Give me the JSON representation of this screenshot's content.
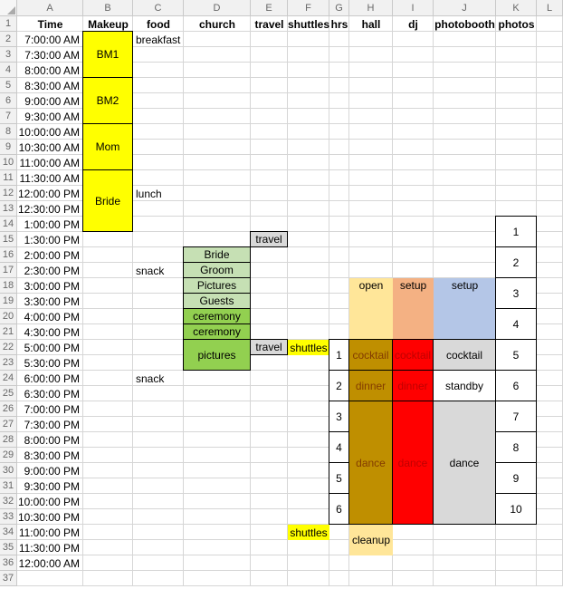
{
  "sheet_header": {
    "column_letters": [
      "A",
      "B",
      "C",
      "D",
      "E",
      "F",
      "G",
      "H",
      "I",
      "J",
      "K",
      "L"
    ],
    "row_count": 37
  },
  "header_row": {
    "A": "Time",
    "B": "Makeup",
    "C": "food",
    "D": "church",
    "E": "travel",
    "F": "shuttles",
    "G": "hrs",
    "H": "hall",
    "I": "dj",
    "J": "photobooth",
    "K": "photos",
    "L": ""
  },
  "times": [
    "7:00:00 AM",
    "7:30:00 AM",
    "8:00:00 AM",
    "8:30:00 AM",
    "9:00:00 AM",
    "9:30:00 AM",
    "10:00:00 AM",
    "10:30:00 AM",
    "11:00:00 AM",
    "11:30:00 AM",
    "12:00:00 PM",
    "12:30:00 PM",
    "1:00:00 PM",
    "1:30:00 PM",
    "2:00:00 PM",
    "2:30:00 PM",
    "3:00:00 PM",
    "3:30:00 PM",
    "4:00:00 PM",
    "4:30:00 PM",
    "5:00:00 PM",
    "5:30:00 PM",
    "6:00:00 PM",
    "6:30:00 PM",
    "7:00:00 PM",
    "7:30:00 PM",
    "8:00:00 PM",
    "8:30:00 PM",
    "9:00:00 PM",
    "9:30:00 PM",
    "10:00:00 PM",
    "10:30:00 PM",
    "11:00:00 PM",
    "11:30:00 PM",
    "12:00:00 AM"
  ],
  "cell_styles": {
    "makeup": {
      "bg": "#FFFF00",
      "border": true
    },
    "food": {
      "align": "left"
    },
    "church_group": {
      "bg": "#C6E0B4",
      "border": true
    },
    "church_event": {
      "bg": "#92D050",
      "border": true
    },
    "travel": {
      "bg": "#D9D9D9",
      "border": true
    },
    "shuttles": {
      "bg": "#FFFF00"
    },
    "hall_open": {
      "bg": "#FFE699",
      "valign": "top"
    },
    "hall_active": {
      "bg": "#BF8F00",
      "fg": "#833C00",
      "border": true
    },
    "hall_cleanup": {
      "bg": "#FFE699"
    },
    "dj_setup": {
      "bg": "#F4B183",
      "valign": "top"
    },
    "dj_active": {
      "bg": "#FF0000",
      "fg": "#C00000",
      "border": true
    },
    "booth_setup": {
      "bg": "#B4C6E7",
      "valign": "top"
    },
    "booth_idle": {
      "bg": "#D9D9D9",
      "border": true
    },
    "white_box": {
      "bg": "#FFFFFF",
      "border": true
    }
  },
  "ui_colors": {
    "gridline": "#D6D6D6",
    "header_bg": "#F1F1F1",
    "header_border": "#C9C9C9",
    "header_text": "#686868",
    "cell_border": "#000000"
  },
  "cells": [
    {
      "col": "B",
      "row": 2,
      "span": 3,
      "text": "BM1",
      "style": "makeup"
    },
    {
      "col": "B",
      "row": 5,
      "span": 3,
      "text": "BM2",
      "style": "makeup"
    },
    {
      "col": "B",
      "row": 8,
      "span": 3,
      "text": "Mom",
      "style": "makeup"
    },
    {
      "col": "B",
      "row": 11,
      "span": 4,
      "text": "Bride",
      "style": "makeup"
    },
    {
      "col": "C",
      "row": 2,
      "span": 1,
      "text": "breakfast",
      "style": "food"
    },
    {
      "col": "C",
      "row": 12,
      "span": 1,
      "text": "lunch",
      "style": "food"
    },
    {
      "col": "C",
      "row": 17,
      "span": 1,
      "text": "snack",
      "style": "food"
    },
    {
      "col": "C",
      "row": 24,
      "span": 1,
      "text": "snack",
      "style": "food"
    },
    {
      "col": "D",
      "row": 16,
      "span": 1,
      "text": "Bride",
      "style": "church_group"
    },
    {
      "col": "D",
      "row": 17,
      "span": 1,
      "text": "Groom",
      "style": "church_group"
    },
    {
      "col": "D",
      "row": 18,
      "span": 1,
      "text": "Pictures",
      "style": "church_group"
    },
    {
      "col": "D",
      "row": 19,
      "span": 1,
      "text": "Guests",
      "style": "church_group"
    },
    {
      "col": "D",
      "row": 20,
      "span": 1,
      "text": "ceremony",
      "style": "church_event"
    },
    {
      "col": "D",
      "row": 21,
      "span": 1,
      "text": "ceremony",
      "style": "church_event"
    },
    {
      "col": "D",
      "row": 22,
      "span": 2,
      "text": "pictures",
      "style": "church_event"
    },
    {
      "col": "E",
      "row": 15,
      "span": 1,
      "text": "travel",
      "style": "travel"
    },
    {
      "col": "E",
      "row": 22,
      "span": 1,
      "text": "travel",
      "style": "travel"
    },
    {
      "col": "F",
      "row": 22,
      "span": 1,
      "text": "shuttles",
      "style": "shuttles"
    },
    {
      "col": "F",
      "row": 34,
      "span": 1,
      "text": "shuttles",
      "style": "shuttles"
    },
    {
      "col": "G",
      "row": 22,
      "span": 2,
      "text": "1",
      "style": "white_box"
    },
    {
      "col": "G",
      "row": 24,
      "span": 2,
      "text": "2",
      "style": "white_box"
    },
    {
      "col": "G",
      "row": 26,
      "span": 2,
      "text": "3",
      "style": "white_box"
    },
    {
      "col": "G",
      "row": 28,
      "span": 2,
      "text": "4",
      "style": "white_box"
    },
    {
      "col": "G",
      "row": 30,
      "span": 2,
      "text": "5",
      "style": "white_box"
    },
    {
      "col": "G",
      "row": 32,
      "span": 2,
      "text": "6",
      "style": "white_box"
    },
    {
      "col": "H",
      "row": 18,
      "span": 4,
      "text": "open",
      "style": "hall_open"
    },
    {
      "col": "H",
      "row": 22,
      "span": 2,
      "text": "cocktail",
      "style": "hall_active"
    },
    {
      "col": "H",
      "row": 24,
      "span": 2,
      "text": "dinner",
      "style": "hall_active"
    },
    {
      "col": "H",
      "row": 26,
      "span": 8,
      "text": "dance",
      "style": "hall_active"
    },
    {
      "col": "H",
      "row": 34,
      "span": 2,
      "text": "cleanup",
      "style": "hall_cleanup"
    },
    {
      "col": "I",
      "row": 18,
      "span": 4,
      "text": "setup",
      "style": "dj_setup"
    },
    {
      "col": "I",
      "row": 22,
      "span": 2,
      "text": "cocktail",
      "style": "dj_active"
    },
    {
      "col": "I",
      "row": 24,
      "span": 2,
      "text": "dinner",
      "style": "dj_active"
    },
    {
      "col": "I",
      "row": 26,
      "span": 8,
      "text": "dance",
      "style": "dj_active"
    },
    {
      "col": "J",
      "row": 18,
      "span": 4,
      "text": "setup",
      "style": "booth_setup"
    },
    {
      "col": "J",
      "row": 22,
      "span": 2,
      "text": "cocktail",
      "style": "booth_idle"
    },
    {
      "col": "J",
      "row": 24,
      "span": 2,
      "text": "standby",
      "style": "white_box"
    },
    {
      "col": "J",
      "row": 26,
      "span": 8,
      "text": "dance",
      "style": "booth_idle"
    },
    {
      "col": "K",
      "row": 14,
      "span": 2,
      "text": "1",
      "style": "white_box"
    },
    {
      "col": "K",
      "row": 16,
      "span": 2,
      "text": "2",
      "style": "white_box"
    },
    {
      "col": "K",
      "row": 18,
      "span": 2,
      "text": "3",
      "style": "white_box"
    },
    {
      "col": "K",
      "row": 20,
      "span": 2,
      "text": "4",
      "style": "white_box"
    },
    {
      "col": "K",
      "row": 22,
      "span": 2,
      "text": "5",
      "style": "white_box"
    },
    {
      "col": "K",
      "row": 24,
      "span": 2,
      "text": "6",
      "style": "white_box"
    },
    {
      "col": "K",
      "row": 26,
      "span": 2,
      "text": "7",
      "style": "white_box"
    },
    {
      "col": "K",
      "row": 28,
      "span": 2,
      "text": "8",
      "style": "white_box"
    },
    {
      "col": "K",
      "row": 30,
      "span": 2,
      "text": "9",
      "style": "white_box"
    },
    {
      "col": "K",
      "row": 32,
      "span": 2,
      "text": "10",
      "style": "white_box"
    }
  ]
}
